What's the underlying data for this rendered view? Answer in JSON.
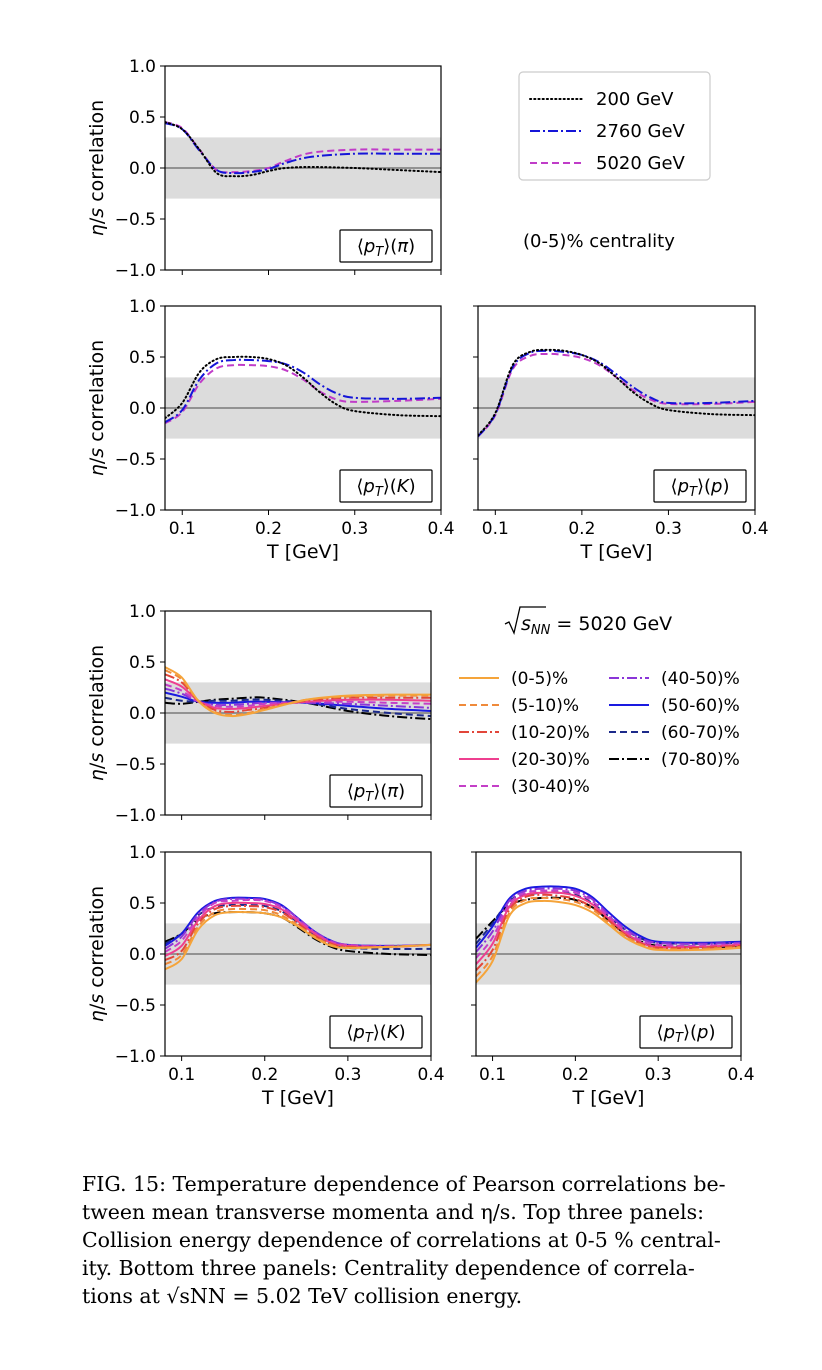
{
  "figure": {
    "top_energy_note": "(0-5)% centrality",
    "bottom_energy_label_root": "s",
    "bottom_energy_label_sub": "NN",
    "bottom_energy_label_value": " = 5020 GeV"
  },
  "caption": {
    "line1": "FIG. 15: Temperature dependence of Pearson correlations be-",
    "line2": "tween mean transverse momenta and η/s. Top three panels:",
    "line3": "Collision energy dependence of correlations at 0-5 % central-",
    "line4": "ity. Bottom three panels: Centrality dependence of correla-",
    "line5": "tions at √sNN = 5.02 TeV collision energy."
  },
  "chart_data": [
    {
      "type": "line",
      "id": "top-pi",
      "panel_label": "⟨pT⟩(π)",
      "ylabel": "η/s correlation",
      "xlabel": "",
      "xlim": [
        0.08,
        0.4
      ],
      "ylim": [
        -1.0,
        1.0
      ],
      "xticks": [
        "0.1",
        "0.2",
        "0.3",
        "0.4"
      ],
      "yticks": [
        "1.0",
        "0.5",
        "0.0",
        "−0.5",
        "−1.0"
      ],
      "shaded_band": [
        -0.3,
        0.3
      ],
      "x": [
        0.08,
        0.1,
        0.12,
        0.14,
        0.16,
        0.18,
        0.2,
        0.22,
        0.25,
        0.3,
        0.35,
        0.4
      ],
      "series": [
        {
          "name": "200 GeV",
          "values": [
            0.45,
            0.38,
            0.18,
            -0.05,
            -0.08,
            -0.07,
            -0.03,
            0.0,
            0.01,
            0.0,
            -0.02,
            -0.04
          ]
        },
        {
          "name": "2760 GeV",
          "values": [
            0.44,
            0.38,
            0.17,
            -0.02,
            -0.05,
            -0.04,
            -0.01,
            0.05,
            0.11,
            0.14,
            0.14,
            0.14
          ]
        },
        {
          "name": "5020 GeV",
          "values": [
            0.45,
            0.39,
            0.18,
            -0.02,
            -0.04,
            -0.03,
            0.0,
            0.07,
            0.15,
            0.18,
            0.18,
            0.18
          ]
        }
      ]
    },
    {
      "type": "line",
      "id": "top-K",
      "panel_label": "⟨pT⟩(K)",
      "ylabel": "η/s correlation",
      "xlabel": "T [GeV]",
      "xlim": [
        0.08,
        0.4
      ],
      "ylim": [
        -1.0,
        1.0
      ],
      "xticks": [
        "0.1",
        "0.2",
        "0.3",
        "0.4"
      ],
      "yticks": [
        "1.0",
        "0.5",
        "0.0",
        "−0.5",
        "−1.0"
      ],
      "shaded_band": [
        -0.3,
        0.3
      ],
      "x": [
        0.08,
        0.1,
        0.12,
        0.14,
        0.16,
        0.18,
        0.2,
        0.22,
        0.24,
        0.26,
        0.28,
        0.3,
        0.35,
        0.4
      ],
      "series": [
        {
          "name": "200 GeV",
          "values": [
            -0.1,
            0.05,
            0.35,
            0.48,
            0.5,
            0.5,
            0.48,
            0.42,
            0.3,
            0.15,
            0.03,
            -0.03,
            -0.07,
            -0.08
          ]
        },
        {
          "name": "2760 GeV",
          "values": [
            -0.14,
            -0.02,
            0.28,
            0.44,
            0.47,
            0.47,
            0.46,
            0.43,
            0.35,
            0.23,
            0.14,
            0.1,
            0.09,
            0.1
          ]
        },
        {
          "name": "5020 GeV",
          "values": [
            -0.15,
            -0.04,
            0.24,
            0.39,
            0.42,
            0.42,
            0.41,
            0.37,
            0.28,
            0.16,
            0.08,
            0.06,
            0.07,
            0.09
          ]
        }
      ]
    },
    {
      "type": "line",
      "id": "top-p",
      "panel_label": "⟨pT⟩(p)",
      "ylabel": "",
      "xlabel": "T [GeV]",
      "xlim": [
        0.08,
        0.4
      ],
      "ylim": [
        -1.0,
        1.0
      ],
      "xticks": [
        "0.1",
        "0.2",
        "0.3",
        "0.4"
      ],
      "yticks": [],
      "shaded_band": [
        -0.3,
        0.3
      ],
      "x": [
        0.08,
        0.1,
        0.12,
        0.14,
        0.16,
        0.18,
        0.2,
        0.22,
        0.24,
        0.26,
        0.28,
        0.3,
        0.35,
        0.4
      ],
      "series": [
        {
          "name": "200 GeV",
          "values": [
            -0.27,
            -0.05,
            0.42,
            0.55,
            0.57,
            0.56,
            0.52,
            0.44,
            0.3,
            0.15,
            0.04,
            -0.02,
            -0.06,
            -0.07
          ]
        },
        {
          "name": "2760 GeV",
          "values": [
            -0.28,
            -0.06,
            0.4,
            0.54,
            0.56,
            0.55,
            0.52,
            0.45,
            0.33,
            0.2,
            0.1,
            0.05,
            0.05,
            0.07
          ]
        },
        {
          "name": "5020 GeV",
          "values": [
            -0.28,
            -0.07,
            0.38,
            0.51,
            0.53,
            0.52,
            0.49,
            0.42,
            0.3,
            0.17,
            0.08,
            0.04,
            0.04,
            0.06
          ]
        }
      ]
    },
    {
      "type": "line",
      "id": "bottom-pi",
      "panel_label": "⟨pT⟩(π)",
      "ylabel": "η/s correlation",
      "xlabel": "",
      "xlim": [
        0.08,
        0.4
      ],
      "ylim": [
        -1.0,
        1.0
      ],
      "xticks": [
        "0.1",
        "0.2",
        "0.3",
        "0.4"
      ],
      "yticks": [
        "1.0",
        "0.5",
        "0.0",
        "−0.5",
        "−1.0"
      ],
      "shaded_band": [
        -0.3,
        0.3
      ],
      "x": [
        0.08,
        0.1,
        0.12,
        0.14,
        0.16,
        0.18,
        0.2,
        0.25,
        0.3,
        0.35,
        0.4
      ],
      "series": [
        {
          "name": "(0-5)%",
          "values": [
            0.45,
            0.35,
            0.12,
            0.0,
            -0.03,
            -0.01,
            0.03,
            0.13,
            0.17,
            0.18,
            0.18
          ]
        },
        {
          "name": "(5-10)%",
          "values": [
            0.42,
            0.33,
            0.12,
            0.01,
            -0.02,
            0.0,
            0.04,
            0.13,
            0.16,
            0.17,
            0.17
          ]
        },
        {
          "name": "(10-20)%",
          "values": [
            0.38,
            0.3,
            0.12,
            0.03,
            0.01,
            0.03,
            0.05,
            0.12,
            0.15,
            0.15,
            0.15
          ]
        },
        {
          "name": "(20-30)%",
          "values": [
            0.33,
            0.26,
            0.12,
            0.05,
            0.04,
            0.05,
            0.07,
            0.11,
            0.13,
            0.13,
            0.12
          ]
        },
        {
          "name": "(30-40)%",
          "values": [
            0.28,
            0.22,
            0.11,
            0.07,
            0.06,
            0.07,
            0.09,
            0.11,
            0.11,
            0.1,
            0.09
          ]
        },
        {
          "name": "(40-50)%",
          "values": [
            0.24,
            0.19,
            0.11,
            0.08,
            0.08,
            0.09,
            0.1,
            0.1,
            0.09,
            0.07,
            0.05
          ]
        },
        {
          "name": "(50-60)%",
          "values": [
            0.2,
            0.16,
            0.11,
            0.1,
            0.1,
            0.11,
            0.11,
            0.1,
            0.07,
            0.04,
            0.02
          ]
        },
        {
          "name": "(60-70)%",
          "values": [
            0.15,
            0.12,
            0.11,
            0.12,
            0.12,
            0.13,
            0.13,
            0.1,
            0.04,
            0.0,
            -0.03
          ]
        },
        {
          "name": "(70-80)%",
          "values": [
            0.1,
            0.09,
            0.11,
            0.13,
            0.14,
            0.15,
            0.15,
            0.1,
            0.02,
            -0.03,
            -0.06
          ]
        }
      ]
    },
    {
      "type": "line",
      "id": "bottom-K",
      "panel_label": "⟨pT⟩(K)",
      "ylabel": "η/s correlation",
      "xlabel": "T [GeV]",
      "xlim": [
        0.08,
        0.4
      ],
      "ylim": [
        -1.0,
        1.0
      ],
      "xticks": [
        "0.1",
        "0.2",
        "0.3",
        "0.4"
      ],
      "yticks": [
        "1.0",
        "0.5",
        "0.0",
        "−0.5",
        "−1.0"
      ],
      "shaded_band": [
        -0.3,
        0.3
      ],
      "x": [
        0.08,
        0.1,
        0.12,
        0.14,
        0.16,
        0.18,
        0.2,
        0.22,
        0.24,
        0.26,
        0.28,
        0.3,
        0.35,
        0.4
      ],
      "series": [
        {
          "name": "(0-5)%",
          "values": [
            -0.15,
            -0.05,
            0.24,
            0.38,
            0.41,
            0.41,
            0.4,
            0.36,
            0.27,
            0.16,
            0.08,
            0.06,
            0.07,
            0.09
          ]
        },
        {
          "name": "(5-10)%",
          "values": [
            -0.1,
            -0.01,
            0.27,
            0.41,
            0.44,
            0.44,
            0.43,
            0.38,
            0.28,
            0.17,
            0.09,
            0.06,
            0.07,
            0.09
          ]
        },
        {
          "name": "(10-20)%",
          "values": [
            -0.06,
            0.03,
            0.3,
            0.44,
            0.47,
            0.47,
            0.46,
            0.41,
            0.3,
            0.18,
            0.1,
            0.07,
            0.07,
            0.09
          ]
        },
        {
          "name": "(20-30)%",
          "values": [
            -0.02,
            0.08,
            0.33,
            0.47,
            0.5,
            0.5,
            0.49,
            0.44,
            0.32,
            0.2,
            0.11,
            0.08,
            0.07,
            0.09
          ]
        },
        {
          "name": "(30-40)%",
          "values": [
            0.02,
            0.13,
            0.36,
            0.5,
            0.52,
            0.53,
            0.52,
            0.46,
            0.34,
            0.21,
            0.12,
            0.09,
            0.07,
            0.09
          ]
        },
        {
          "name": "(40-50)%",
          "values": [
            0.05,
            0.17,
            0.39,
            0.51,
            0.54,
            0.54,
            0.53,
            0.47,
            0.35,
            0.22,
            0.13,
            0.09,
            0.08,
            0.09
          ]
        },
        {
          "name": "(50-60)%",
          "values": [
            0.08,
            0.2,
            0.41,
            0.52,
            0.55,
            0.55,
            0.54,
            0.48,
            0.35,
            0.22,
            0.13,
            0.09,
            0.08,
            0.09
          ]
        },
        {
          "name": "(60-70)%",
          "values": [
            0.1,
            0.2,
            0.38,
            0.46,
            0.48,
            0.48,
            0.47,
            0.42,
            0.31,
            0.19,
            0.1,
            0.06,
            0.05,
            0.05
          ]
        },
        {
          "name": "(70-80)%",
          "values": [
            0.12,
            0.2,
            0.34,
            0.4,
            0.41,
            0.41,
            0.4,
            0.36,
            0.26,
            0.15,
            0.07,
            0.03,
            0.0,
            -0.01
          ]
        }
      ]
    },
    {
      "type": "line",
      "id": "bottom-p",
      "panel_label": "⟨pT⟩(p)",
      "ylabel": "",
      "xlabel": "T [GeV]",
      "xlim": [
        0.08,
        0.4
      ],
      "ylim": [
        -1.0,
        1.0
      ],
      "xticks": [
        "0.1",
        "0.2",
        "0.3",
        "0.4"
      ],
      "yticks": [],
      "shaded_band": [
        -0.3,
        0.3
      ],
      "x": [
        0.08,
        0.1,
        0.12,
        0.14,
        0.16,
        0.18,
        0.2,
        0.22,
        0.24,
        0.26,
        0.28,
        0.3,
        0.35,
        0.4
      ],
      "series": [
        {
          "name": "(0-5)%",
          "values": [
            -0.28,
            -0.07,
            0.37,
            0.5,
            0.52,
            0.51,
            0.48,
            0.41,
            0.29,
            0.16,
            0.08,
            0.04,
            0.04,
            0.06
          ]
        },
        {
          "name": "(5-10)%",
          "values": [
            -0.22,
            -0.02,
            0.4,
            0.53,
            0.55,
            0.54,
            0.51,
            0.44,
            0.31,
            0.18,
            0.09,
            0.05,
            0.05,
            0.07
          ]
        },
        {
          "name": "(10-20)%",
          "values": [
            -0.16,
            0.04,
            0.43,
            0.56,
            0.58,
            0.57,
            0.54,
            0.46,
            0.33,
            0.19,
            0.1,
            0.06,
            0.06,
            0.08
          ]
        },
        {
          "name": "(20-30)%",
          "values": [
            -0.1,
            0.1,
            0.46,
            0.58,
            0.6,
            0.6,
            0.57,
            0.49,
            0.35,
            0.21,
            0.11,
            0.07,
            0.07,
            0.09
          ]
        },
        {
          "name": "(30-40)%",
          "values": [
            -0.04,
            0.16,
            0.49,
            0.6,
            0.62,
            0.62,
            0.6,
            0.52,
            0.37,
            0.23,
            0.13,
            0.09,
            0.08,
            0.1
          ]
        },
        {
          "name": "(40-50)%",
          "values": [
            0.02,
            0.22,
            0.52,
            0.62,
            0.64,
            0.64,
            0.62,
            0.54,
            0.39,
            0.25,
            0.15,
            0.11,
            0.1,
            0.11
          ]
        },
        {
          "name": "(50-60)%",
          "values": [
            0.06,
            0.27,
            0.54,
            0.64,
            0.66,
            0.66,
            0.64,
            0.56,
            0.41,
            0.27,
            0.17,
            0.12,
            0.11,
            0.12
          ]
        },
        {
          "name": "(60-70)%",
          "values": [
            0.1,
            0.3,
            0.52,
            0.58,
            0.6,
            0.6,
            0.58,
            0.5,
            0.37,
            0.24,
            0.15,
            0.11,
            0.1,
            0.11
          ]
        },
        {
          "name": "(70-80)%",
          "values": [
            0.15,
            0.32,
            0.48,
            0.53,
            0.55,
            0.55,
            0.53,
            0.46,
            0.33,
            0.2,
            0.12,
            0.08,
            0.07,
            0.07
          ]
        }
      ]
    }
  ],
  "legends": {
    "energy": [
      {
        "name": "200 GeV",
        "color": "#000000",
        "dash": "1.2,3"
      },
      {
        "name": "2760 GeV",
        "color": "#1515d8",
        "dash": "10,3,2,3"
      },
      {
        "name": "5020 GeV",
        "color": "#c03cc8",
        "dash": "7,4"
      }
    ],
    "centrality": [
      {
        "name": "(0-5)%",
        "color": "#f5a43a",
        "dash": ""
      },
      {
        "name": "(5-10)%",
        "color": "#ef8a3b",
        "dash": "7,4"
      },
      {
        "name": "(10-20)%",
        "color": "#e2463a",
        "dash": "10,3,2,3"
      },
      {
        "name": "(20-30)%",
        "color": "#ee3f8f",
        "dash": ""
      },
      {
        "name": "(30-40)%",
        "color": "#c43fc7",
        "dash": "7,4"
      },
      {
        "name": "(40-50)%",
        "color": "#8a35d8",
        "dash": "10,3,2,3"
      },
      {
        "name": "(50-60)%",
        "color": "#1a1ae0",
        "dash": ""
      },
      {
        "name": "(60-70)%",
        "color": "#1c2a8a",
        "dash": "7,4"
      },
      {
        "name": "(70-80)%",
        "color": "#000000",
        "dash": "10,3,2,3"
      }
    ]
  }
}
